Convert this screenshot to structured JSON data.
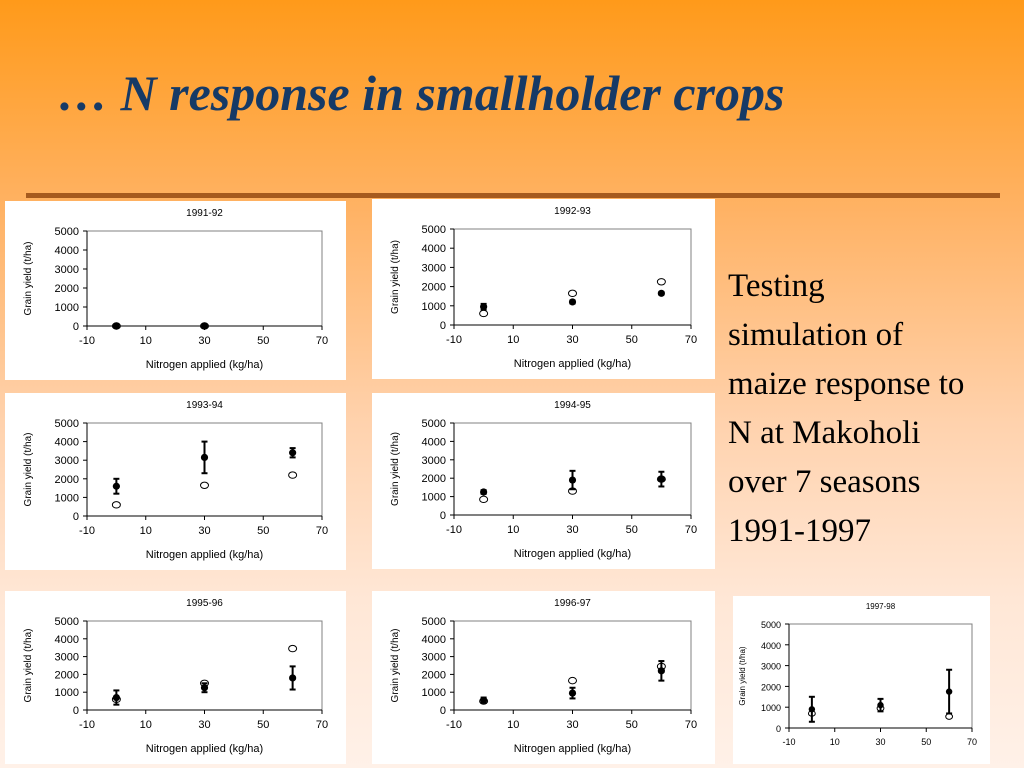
{
  "slide": {
    "title": "… N response in smallholder crops",
    "caption": [
      "Testing",
      "simulation of",
      "maize response to",
      "N at Makoholi",
      "over 7 seasons",
      "1991-1997"
    ],
    "colors": {
      "title": "#163a66",
      "rule": "#a65a1e",
      "background_top": "#ff9a1a",
      "background_bottom": "#fff1e8"
    }
  },
  "chart_data": [
    {
      "type": "scatter",
      "title": "1991-92",
      "xlabel": "Nitrogen applied (kg/ha)",
      "ylabel": "Grain yield (t/ha)",
      "xlim": [
        -10,
        70
      ],
      "ylim": [
        0,
        5000
      ],
      "xticks": [
        -10,
        10,
        30,
        50,
        70
      ],
      "yticks": [
        0,
        1000,
        2000,
        3000,
        4000,
        5000
      ],
      "series": [
        {
          "marker": "filled",
          "points": [
            {
              "x": 0,
              "y": 0,
              "err": 0
            },
            {
              "x": 30,
              "y": 0,
              "err": 0
            }
          ]
        },
        {
          "marker": "open",
          "points": [
            {
              "x": 0,
              "y": 0
            },
            {
              "x": 30,
              "y": 0
            }
          ]
        }
      ]
    },
    {
      "type": "scatter",
      "title": "1992-93",
      "xlabel": "Nitrogen applied (kg/ha)",
      "ylabel": "Grain yield (t/ha)",
      "xlim": [
        -10,
        70
      ],
      "ylim": [
        0,
        5000
      ],
      "xticks": [
        -10,
        10,
        30,
        50,
        70
      ],
      "yticks": [
        0,
        1000,
        2000,
        3000,
        4000,
        5000
      ],
      "series": [
        {
          "marker": "filled",
          "points": [
            {
              "x": 0,
              "y": 950,
              "err": 150
            },
            {
              "x": 30,
              "y": 1200,
              "err": 80
            },
            {
              "x": 60,
              "y": 1650,
              "err": 60
            }
          ]
        },
        {
          "marker": "open",
          "points": [
            {
              "x": 0,
              "y": 600
            },
            {
              "x": 30,
              "y": 1650
            },
            {
              "x": 60,
              "y": 2250
            }
          ]
        }
      ]
    },
    {
      "type": "scatter",
      "title": "1993-94",
      "xlabel": "Nitrogen applied (kg/ha)",
      "ylabel": "Grain yield (t/ha)",
      "xlim": [
        -10,
        70
      ],
      "ylim": [
        0,
        5000
      ],
      "xticks": [
        -10,
        10,
        30,
        50,
        70
      ],
      "yticks": [
        0,
        1000,
        2000,
        3000,
        4000,
        5000
      ],
      "series": [
        {
          "marker": "filled",
          "points": [
            {
              "x": 0,
              "y": 1600,
              "err": 400
            },
            {
              "x": 30,
              "y": 3150,
              "err": 850
            },
            {
              "x": 60,
              "y": 3400,
              "err": 250
            }
          ]
        },
        {
          "marker": "open",
          "points": [
            {
              "x": 0,
              "y": 600
            },
            {
              "x": 30,
              "y": 1650
            },
            {
              "x": 60,
              "y": 2200
            }
          ]
        }
      ]
    },
    {
      "type": "scatter",
      "title": "1994-95",
      "xlabel": "Nitrogen applied (kg/ha)",
      "ylabel": "Grain yield (t/ha)",
      "xlim": [
        -10,
        70
      ],
      "ylim": [
        0,
        5000
      ],
      "xticks": [
        -10,
        10,
        30,
        50,
        70
      ],
      "yticks": [
        0,
        1000,
        2000,
        3000,
        4000,
        5000
      ],
      "series": [
        {
          "marker": "filled",
          "points": [
            {
              "x": 0,
              "y": 1250,
              "err": 100
            },
            {
              "x": 30,
              "y": 1900,
              "err": 500
            },
            {
              "x": 60,
              "y": 1950,
              "err": 400
            }
          ]
        },
        {
          "marker": "open",
          "points": [
            {
              "x": 0,
              "y": 850
            },
            {
              "x": 30,
              "y": 1300
            },
            {
              "x": 60,
              "y": 1950
            }
          ]
        }
      ]
    },
    {
      "type": "scatter",
      "title": "1995-96",
      "xlabel": "Nitrogen applied (kg/ha)",
      "ylabel": "Grain yield (t/ha)",
      "xlim": [
        -10,
        70
      ],
      "ylim": [
        0,
        5000
      ],
      "xticks": [
        -10,
        10,
        30,
        50,
        70
      ],
      "yticks": [
        0,
        1000,
        2000,
        3000,
        4000,
        5000
      ],
      "series": [
        {
          "marker": "filled",
          "points": [
            {
              "x": 0,
              "y": 700,
              "err": 400
            },
            {
              "x": 30,
              "y": 1250,
              "err": 250
            },
            {
              "x": 60,
              "y": 1800,
              "err": 650
            }
          ]
        },
        {
          "marker": "open",
          "points": [
            {
              "x": 0,
              "y": 600
            },
            {
              "x": 30,
              "y": 1500
            },
            {
              "x": 60,
              "y": 3450
            }
          ]
        }
      ]
    },
    {
      "type": "scatter",
      "title": "1996-97",
      "xlabel": "Nitrogen applied (kg/ha)",
      "ylabel": "Grain yield (t/ha)",
      "xlim": [
        -10,
        70
      ],
      "ylim": [
        0,
        5000
      ],
      "xticks": [
        -10,
        10,
        30,
        50,
        70
      ],
      "yticks": [
        0,
        1000,
        2000,
        3000,
        4000,
        5000
      ],
      "series": [
        {
          "marker": "filled",
          "points": [
            {
              "x": 0,
              "y": 550,
              "err": 150
            },
            {
              "x": 30,
              "y": 950,
              "err": 300
            },
            {
              "x": 60,
              "y": 2200,
              "err": 550
            }
          ]
        },
        {
          "marker": "open",
          "points": [
            {
              "x": 0,
              "y": 500
            },
            {
              "x": 30,
              "y": 1650
            },
            {
              "x": 60,
              "y": 2450
            }
          ]
        }
      ]
    },
    {
      "type": "scatter",
      "title": "1997-98",
      "xlabel": "",
      "ylabel": "Grain yield (t/ha)",
      "xlim": [
        -10,
        70
      ],
      "ylim": [
        0,
        5000
      ],
      "xticks": [
        -10,
        10,
        30,
        50,
        70
      ],
      "yticks": [
        0,
        1000,
        2000,
        3000,
        4000,
        5000
      ],
      "series": [
        {
          "marker": "filled",
          "points": [
            {
              "x": 0,
              "y": 900,
              "err": 600
            },
            {
              "x": 30,
              "y": 1100,
              "err": 300
            },
            {
              "x": 60,
              "y": 1750,
              "err": 1050
            }
          ]
        },
        {
          "marker": "open",
          "points": [
            {
              "x": 0,
              "y": 700
            },
            {
              "x": 30,
              "y": 950
            },
            {
              "x": 60,
              "y": 550
            }
          ]
        }
      ]
    }
  ]
}
